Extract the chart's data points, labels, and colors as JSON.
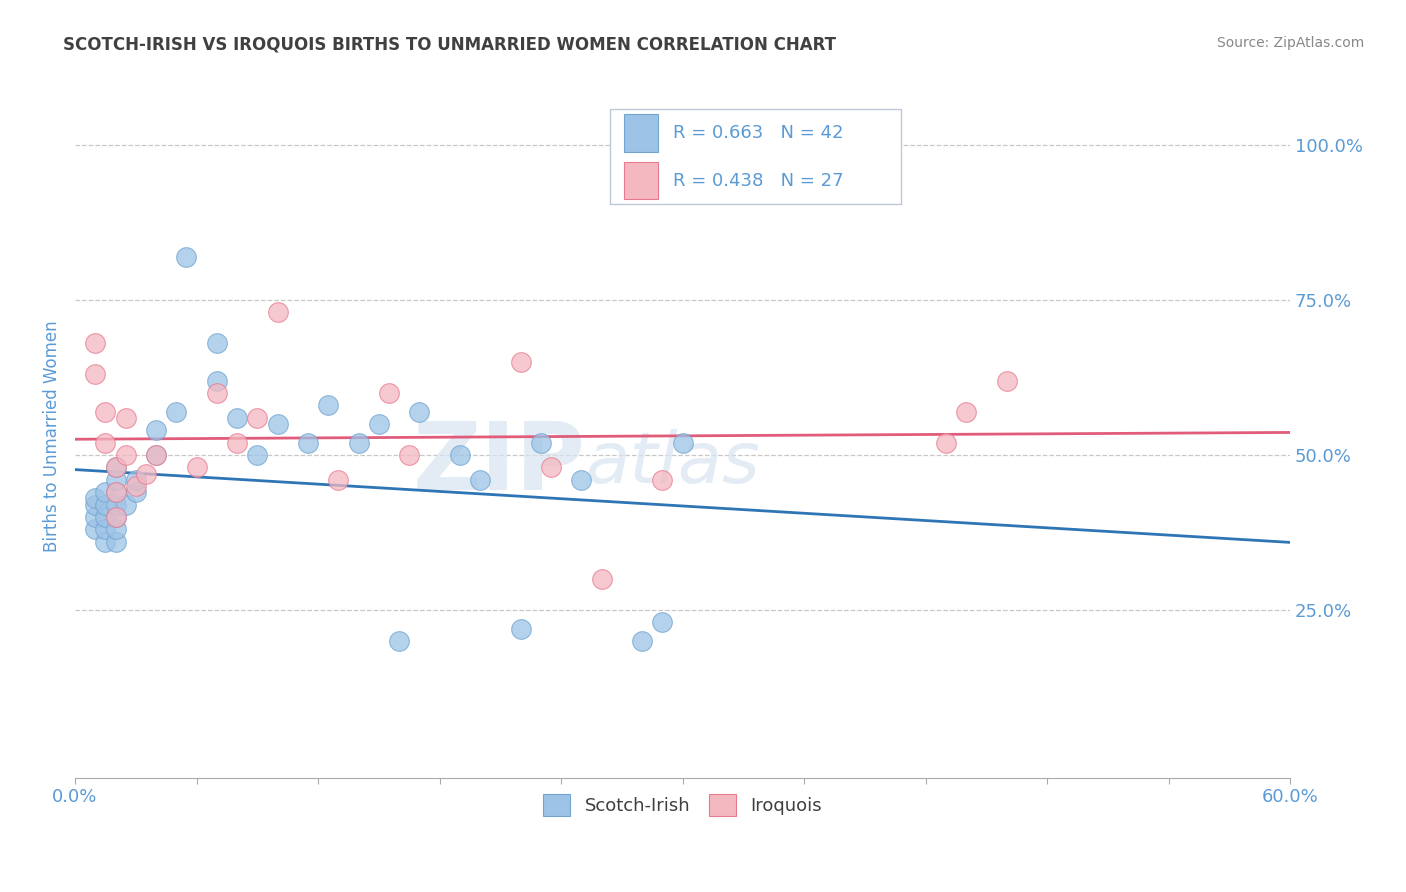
{
  "title": "SCOTCH-IRISH VS IROQUOIS BIRTHS TO UNMARRIED WOMEN CORRELATION CHART",
  "source": "Source: ZipAtlas.com",
  "ylabel": "Births to Unmarried Women",
  "xlim": [
    0.0,
    0.6
  ],
  "ylim": [
    -0.02,
    1.08
  ],
  "xticks": [
    0.0,
    0.06,
    0.12,
    0.18,
    0.24,
    0.3,
    0.36,
    0.42,
    0.48,
    0.54,
    0.6
  ],
  "yticks_right": [
    0.25,
    0.5,
    0.75,
    1.0
  ],
  "yticklabels_right": [
    "25.0%",
    "50.0%",
    "75.0%",
    "100.0%"
  ],
  "scotch_irish_color": "#9dc3e6",
  "iroquois_color": "#f4b8c1",
  "scotch_irish_edge_color": "#70a5d0",
  "iroquois_edge_color": "#e87a8f",
  "scotch_irish_line_color": "#2e75b6",
  "iroquois_line_color": "#e05c7a",
  "scotch_irish_R": 0.663,
  "scotch_irish_N": 42,
  "iroquois_R": 0.438,
  "iroquois_N": 27,
  "scotch_irish_x": [
    0.01,
    0.01,
    0.01,
    0.01,
    0.015,
    0.015,
    0.015,
    0.015,
    0.015,
    0.02,
    0.02,
    0.02,
    0.02,
    0.02,
    0.02,
    0.02,
    0.025,
    0.03,
    0.03,
    0.04,
    0.04,
    0.05,
    0.055,
    0.07,
    0.07,
    0.08,
    0.09,
    0.1,
    0.115,
    0.125,
    0.14,
    0.15,
    0.16,
    0.17,
    0.19,
    0.2,
    0.22,
    0.23,
    0.25,
    0.28,
    0.29,
    0.3
  ],
  "scotch_irish_y": [
    0.38,
    0.4,
    0.42,
    0.43,
    0.36,
    0.38,
    0.4,
    0.42,
    0.44,
    0.36,
    0.38,
    0.4,
    0.42,
    0.44,
    0.46,
    0.48,
    0.42,
    0.44,
    0.46,
    0.5,
    0.54,
    0.57,
    0.82,
    0.62,
    0.68,
    0.56,
    0.5,
    0.55,
    0.52,
    0.58,
    0.52,
    0.55,
    0.2,
    0.57,
    0.5,
    0.46,
    0.22,
    0.52,
    0.46,
    0.2,
    0.23,
    0.52
  ],
  "iroquois_x": [
    0.01,
    0.01,
    0.015,
    0.015,
    0.02,
    0.02,
    0.02,
    0.025,
    0.025,
    0.03,
    0.035,
    0.04,
    0.06,
    0.07,
    0.08,
    0.09,
    0.1,
    0.13,
    0.155,
    0.165,
    0.22,
    0.235,
    0.26,
    0.29,
    0.43,
    0.44,
    0.46
  ],
  "iroquois_y": [
    0.68,
    0.63,
    0.57,
    0.52,
    0.48,
    0.44,
    0.4,
    0.56,
    0.5,
    0.45,
    0.47,
    0.5,
    0.48,
    0.6,
    0.52,
    0.56,
    0.73,
    0.46,
    0.6,
    0.5,
    0.65,
    0.48,
    0.3,
    0.46,
    0.52,
    0.57,
    0.62
  ],
  "watermark_zip": "ZIP",
  "watermark_atlas": "atlas",
  "background_color": "#ffffff",
  "grid_color": "#c8c8c8",
  "title_color": "#404040",
  "axis_label_color": "#5b9bd5",
  "tick_label_color": "#5b9bd5",
  "legend_box_color": "#f0f4fa",
  "legend_border_color": "#c0c8d8"
}
